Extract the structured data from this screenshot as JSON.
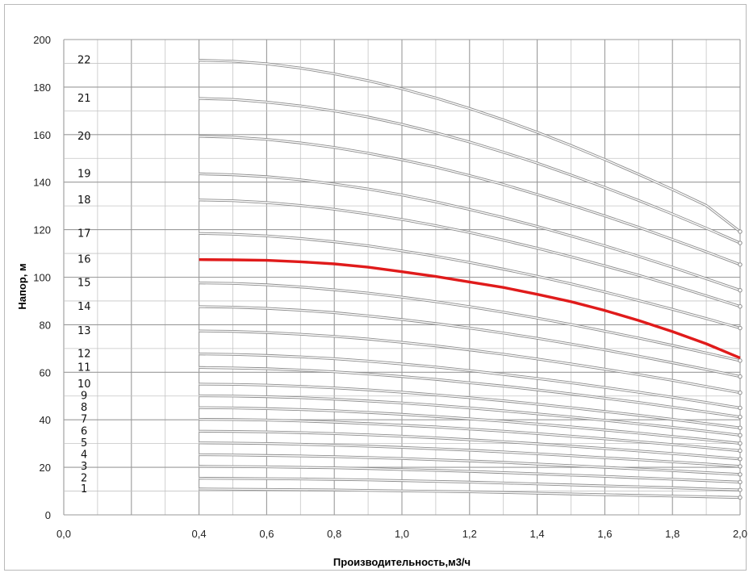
{
  "chart_data": {
    "type": "line",
    "title": "",
    "xlabel": "Производительность,м3/ч",
    "ylabel": "Напор, м",
    "xlim": [
      0,
      2.0
    ],
    "ylim": [
      0,
      200
    ],
    "x_ticks": [
      "0,0",
      "0,4",
      "0,6",
      "0,8",
      "1,0",
      "1,2",
      "1,4",
      "1,6",
      "1,8",
      "2,0"
    ],
    "y_ticks": [
      "0",
      "20",
      "40",
      "60",
      "80",
      "100",
      "120",
      "140",
      "160",
      "180",
      "200"
    ],
    "grid": true,
    "legend": "none",
    "highlight_color": "#e01b1b",
    "curve_color": "#8c8c8c",
    "x": [
      0.4,
      0.5,
      0.6,
      0.7,
      0.8,
      0.9,
      1.0,
      1.1,
      1.2,
      1.3,
      1.4,
      1.5,
      1.6,
      1.7,
      1.8,
      1.9,
      2.0
    ],
    "series": [
      {
        "name": "1",
        "values": [
          10.9,
          10.8,
          10.7,
          10.6,
          10.5,
          10.3,
          10.1,
          9.9,
          9.7,
          9.4,
          9.1,
          8.8,
          8.5,
          8.2,
          7.9,
          7.6,
          7.3
        ]
      },
      {
        "name": "2",
        "values": [
          15.4,
          15.3,
          15.2,
          15.1,
          14.9,
          14.7,
          14.4,
          14.1,
          13.8,
          13.4,
          13.0,
          12.6,
          12.2,
          11.8,
          11.4,
          10.9,
          10.5
        ]
      },
      {
        "name": "3",
        "values": [
          20.4,
          20.3,
          20.2,
          20.0,
          19.8,
          19.5,
          19.1,
          18.7,
          18.3,
          17.8,
          17.3,
          16.7,
          16.2,
          15.6,
          15.0,
          14.4,
          13.8
        ]
      },
      {
        "name": "4",
        "values": [
          25.3,
          25.2,
          25.0,
          24.8,
          24.5,
          24.1,
          23.7,
          23.2,
          22.7,
          22.1,
          21.4,
          20.7,
          20.0,
          19.3,
          18.6,
          17.8,
          17.0
        ]
      },
      {
        "name": "5",
        "values": [
          30.3,
          30.2,
          30.0,
          29.7,
          29.3,
          28.9,
          28.4,
          27.8,
          27.2,
          26.5,
          25.7,
          24.9,
          24.0,
          23.2,
          22.3,
          21.4,
          20.4
        ]
      },
      {
        "name": "6",
        "values": [
          35.2,
          35.1,
          34.9,
          34.6,
          34.2,
          33.7,
          33.1,
          32.4,
          31.6,
          30.8,
          29.9,
          28.9,
          27.9,
          26.9,
          25.8,
          24.7,
          23.5
        ]
      },
      {
        "name": "7",
        "values": [
          40.2,
          40.1,
          39.9,
          39.5,
          39.0,
          38.4,
          37.7,
          37.0,
          36.1,
          35.2,
          34.2,
          33.1,
          32.0,
          30.8,
          29.6,
          28.3,
          27.0
        ]
      },
      {
        "name": "8",
        "values": [
          45.1,
          45.0,
          44.7,
          44.3,
          43.8,
          43.1,
          42.3,
          41.4,
          40.4,
          39.4,
          38.2,
          37.0,
          35.7,
          34.4,
          33.0,
          31.6,
          30.1
        ]
      },
      {
        "name": "9",
        "values": [
          50.1,
          50.0,
          49.7,
          49.3,
          48.7,
          47.9,
          47.1,
          46.1,
          45.0,
          43.8,
          42.5,
          41.2,
          39.8,
          38.3,
          36.8,
          35.2,
          33.5
        ]
      },
      {
        "name": "10",
        "values": [
          55.0,
          54.9,
          54.6,
          54.1,
          53.4,
          52.6,
          51.6,
          50.5,
          49.3,
          48.0,
          46.6,
          45.1,
          43.5,
          41.9,
          40.2,
          38.4,
          36.6
        ]
      },
      {
        "name": "11",
        "values": [
          62.0,
          61.8,
          61.5,
          60.9,
          60.2,
          59.3,
          58.2,
          57.0,
          55.6,
          54.2,
          52.6,
          50.9,
          49.1,
          47.3,
          45.3,
          43.3,
          41.2
        ]
      },
      {
        "name": "12",
        "values": [
          67.7,
          67.5,
          67.1,
          66.5,
          65.7,
          64.7,
          63.5,
          62.2,
          60.7,
          59.1,
          57.4,
          55.6,
          53.6,
          51.6,
          49.5,
          47.3,
          45.0
        ]
      },
      {
        "name": "13",
        "values": [
          77.4,
          77.2,
          76.7,
          76.0,
          75.1,
          74.0,
          72.6,
          71.1,
          69.4,
          67.6,
          65.6,
          63.5,
          61.3,
          59.0,
          56.6,
          54.0,
          51.4
        ]
      },
      {
        "name": "14",
        "values": [
          87.6,
          87.4,
          86.9,
          86.1,
          85.1,
          83.7,
          82.2,
          80.5,
          78.6,
          76.5,
          74.3,
          71.9,
          69.4,
          66.8,
          64.0,
          61.2,
          58.2
        ]
      },
      {
        "name": "15",
        "values": [
          97.6,
          97.4,
          96.8,
          95.9,
          94.7,
          93.3,
          91.6,
          89.7,
          87.6,
          85.3,
          82.8,
          80.1,
          77.3,
          74.4,
          71.3,
          68.1,
          64.9
        ]
      },
      {
        "name": "16",
        "values": [
          107.4,
          107.3,
          107.1,
          106.5,
          105.6,
          104.2,
          102.3,
          100.3,
          98.0,
          95.7,
          92.8,
          89.7,
          86.0,
          81.8,
          77.1,
          72.0,
          66.0
        ]
      },
      {
        "name": "17",
        "values": [
          118.4,
          118.1,
          117.4,
          116.3,
          114.9,
          113.2,
          111.1,
          108.8,
          106.2,
          103.4,
          100.4,
          97.2,
          93.8,
          90.2,
          86.5,
          82.6,
          78.6
        ]
      },
      {
        "name": "18",
        "values": [
          132.5,
          132.2,
          131.4,
          130.2,
          128.6,
          126.6,
          124.3,
          121.7,
          118.8,
          115.6,
          112.2,
          108.6,
          104.8,
          100.8,
          96.6,
          92.2,
          87.7
        ]
      },
      {
        "name": "19",
        "values": [
          143.5,
          143.1,
          142.3,
          141.0,
          139.2,
          137.1,
          134.6,
          131.7,
          128.5,
          125.1,
          121.4,
          117.4,
          113.2,
          108.8,
          104.2,
          99.4,
          94.5
        ]
      },
      {
        "name": "20",
        "values": [
          159.3,
          158.9,
          158.0,
          156.5,
          154.6,
          152.2,
          149.4,
          146.3,
          142.8,
          139.0,
          134.8,
          130.4,
          125.8,
          121.0,
          115.9,
          110.7,
          105.3
        ]
      },
      {
        "name": "21",
        "values": [
          175.2,
          174.8,
          173.7,
          172.1,
          170.0,
          167.4,
          164.3,
          160.8,
          156.9,
          152.6,
          148.0,
          143.0,
          137.8,
          132.3,
          126.6,
          120.6,
          114.4
        ]
      },
      {
        "name": "22",
        "values": [
          191.3,
          190.9,
          189.8,
          188.0,
          185.6,
          182.7,
          179.3,
          175.4,
          171.0,
          166.2,
          161.0,
          155.4,
          149.5,
          143.3,
          136.9,
          130.2,
          119.2
        ]
      }
    ],
    "highlighted_series": "16"
  }
}
